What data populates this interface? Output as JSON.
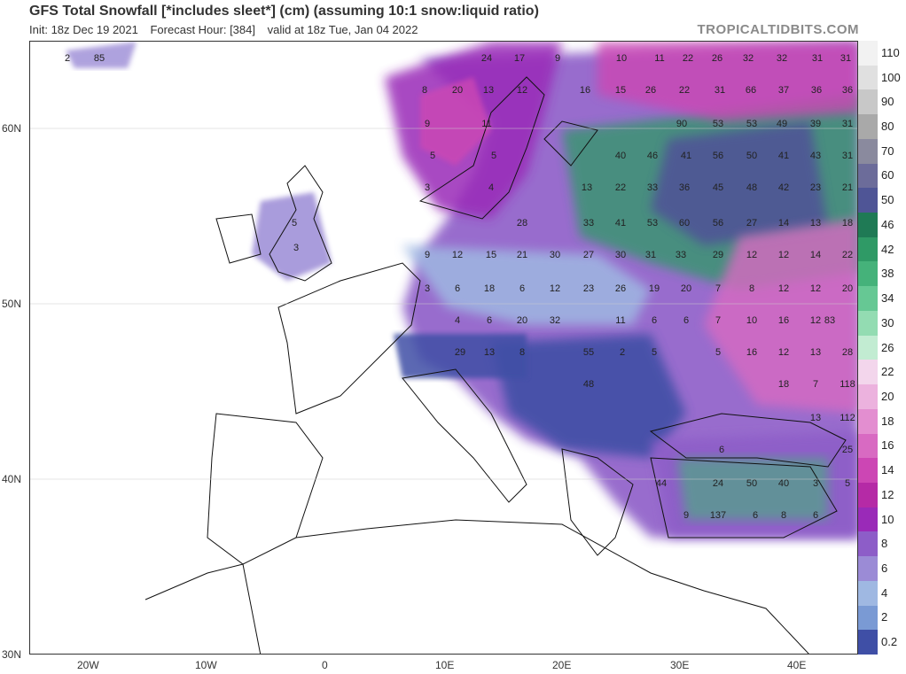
{
  "header": {
    "title": "GFS Total Snowfall [*includes sleet*] (cm) (assuming 10:1 snow:liquid ratio)",
    "init": "Init: 18z Dec 19 2021",
    "forecast_hour": "Forecast Hour: [384]",
    "valid": "valid at 18z Tue, Jan 04 2022",
    "brand": "TROPICALTIDBITS.COM"
  },
  "axes": {
    "lat_labels": [
      "60N",
      "50N",
      "40N",
      "30N"
    ],
    "lon_labels": [
      "20W",
      "10W",
      "0",
      "10E",
      "20E",
      "30E",
      "40E"
    ]
  },
  "colorbar": {
    "labels": [
      "110",
      "100",
      "90",
      "80",
      "70",
      "60",
      "50",
      "46",
      "42",
      "38",
      "34",
      "30",
      "26",
      "22",
      "20",
      "18",
      "16",
      "14",
      "12",
      "10",
      "8",
      "6",
      "4",
      "2",
      "0.2"
    ],
    "colors": [
      "#f2f2f2",
      "#e0e0e0",
      "#c8c8c8",
      "#a9a9a9",
      "#8a8a9e",
      "#6c6c9a",
      "#4f5596",
      "#1f7a55",
      "#2f9a66",
      "#45b27a",
      "#66c894",
      "#93dcb2",
      "#c2ecd2",
      "#f3d6ec",
      "#ecb2de",
      "#e38ed0",
      "#d86ac2",
      "#cc46b4",
      "#b52aa6",
      "#9a2ab8",
      "#8d5dc8",
      "#9b8bd6",
      "#9fb8e2",
      "#7a9ad4",
      "#3f4fa6"
    ]
  },
  "map": {
    "values": [
      "2",
      "85",
      "24",
      "17",
      "9",
      "10",
      "11",
      "22",
      "26",
      "32",
      "32",
      "31",
      "31",
      "8",
      "20",
      "13",
      "12",
      "16",
      "15",
      "26",
      "22",
      "31",
      "66",
      "37",
      "36",
      "36",
      "9",
      "11",
      "5",
      "90",
      "53",
      "53",
      "49",
      "39",
      "31",
      "5",
      "40",
      "46",
      "41",
      "56",
      "50",
      "41",
      "43",
      "31",
      "3",
      "4",
      "13",
      "22",
      "33",
      "36",
      "45",
      "48",
      "42",
      "23",
      "21",
      "5",
      "28",
      "33",
      "41",
      "53",
      "60",
      "56",
      "27",
      "14",
      "13",
      "18",
      "3",
      "9",
      "12",
      "15",
      "21",
      "30",
      "27",
      "30",
      "31",
      "33",
      "29",
      "12",
      "12",
      "14",
      "22",
      "3",
      "6",
      "18",
      "6",
      "12",
      "23",
      "26",
      "19",
      "20",
      "7",
      "8",
      "12",
      "12",
      "20",
      "4",
      "6",
      "20",
      "32",
      "11",
      "6",
      "6",
      "7",
      "10",
      "16",
      "12",
      "83",
      "29",
      "13",
      "8",
      "55",
      "2",
      "5",
      "5",
      "16",
      "12",
      "13",
      "28",
      "48",
      "18",
      "7",
      "118",
      "13",
      "112",
      "6",
      "25",
      "44",
      "24",
      "50",
      "40",
      "3",
      "5",
      "9",
      "137",
      "6",
      "8",
      "6"
    ]
  }
}
